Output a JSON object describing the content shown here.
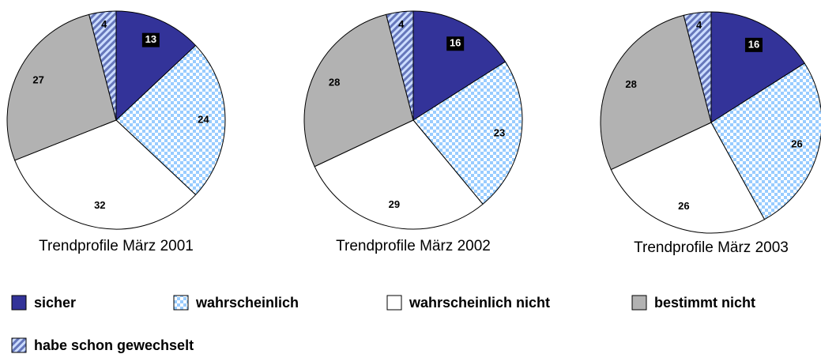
{
  "chart_data": [
    {
      "type": "pie",
      "title": "Trendprofile März 2001",
      "categories": [
        "sicher",
        "wahrscheinlich",
        "wahrscheinlich nicht",
        "bestimmt nicht",
        "habe schon gewechselt"
      ],
      "values": [
        13,
        24,
        32,
        27,
        4
      ],
      "colors": [
        "#333399",
        "#99ccff",
        "#ffffff",
        "#b2b2b2",
        "#6677bb"
      ],
      "fills": [
        "solid",
        "checker",
        "solid",
        "solid",
        "hatch"
      ]
    },
    {
      "type": "pie",
      "title": "Trendprofile März 2002",
      "categories": [
        "sicher",
        "wahrscheinlich",
        "wahrscheinlich nicht",
        "bestimmt nicht",
        "habe schon gewechselt"
      ],
      "values": [
        16,
        23,
        29,
        28,
        4
      ],
      "colors": [
        "#333399",
        "#99ccff",
        "#ffffff",
        "#b2b2b2",
        "#6677bb"
      ],
      "fills": [
        "solid",
        "checker",
        "solid",
        "solid",
        "hatch"
      ]
    },
    {
      "type": "pie",
      "title": "Trendprofile März 2003",
      "categories": [
        "sicher",
        "wahrscheinlich",
        "wahrscheinlich nicht",
        "bestimmt nicht",
        "habe schon gewechselt"
      ],
      "values": [
        16,
        26,
        26,
        28,
        4
      ],
      "colors": [
        "#333399",
        "#99ccff",
        "#ffffff",
        "#b2b2b2",
        "#6677bb"
      ],
      "fills": [
        "solid",
        "checker",
        "solid",
        "solid",
        "hatch"
      ]
    }
  ]
}
